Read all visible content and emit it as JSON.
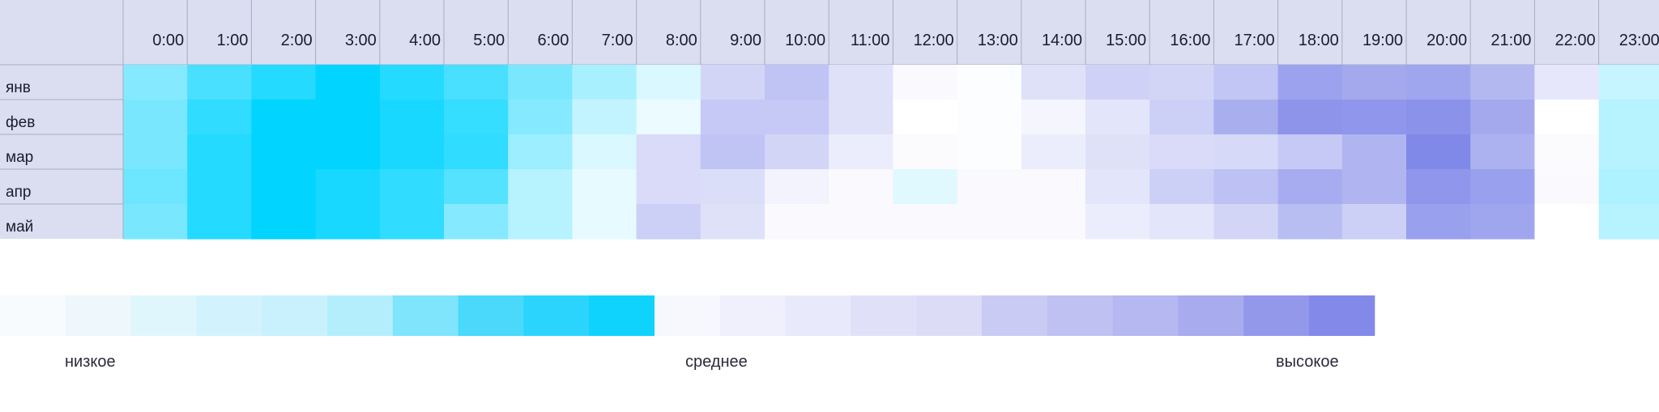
{
  "chart_data": {
    "type": "heatmap",
    "x": [
      "0:00",
      "1:00",
      "2:00",
      "3:00",
      "4:00",
      "5:00",
      "6:00",
      "7:00",
      "8:00",
      "9:00",
      "10:00",
      "11:00",
      "12:00",
      "13:00",
      "14:00",
      "15:00",
      "16:00",
      "17:00",
      "18:00",
      "19:00",
      "20:00",
      "21:00",
      "22:00",
      "23:00"
    ],
    "y": [
      "янв",
      "фев",
      "мар",
      "апр",
      "май"
    ],
    "level_scale": "0 = lowest (lightest) to 1 = highest (darkest) within each ramp",
    "cells": [
      [
        {
          "ramp": "cyan",
          "level": 0.45
        },
        {
          "ramp": "cyan",
          "level": 0.7
        },
        {
          "ramp": "cyan",
          "level": 0.85
        },
        {
          "ramp": "cyan",
          "level": 1.0
        },
        {
          "ramp": "cyan",
          "level": 0.85
        },
        {
          "ramp": "cyan",
          "level": 0.7
        },
        {
          "ramp": "cyan",
          "level": 0.5
        },
        {
          "ramp": "cyan",
          "level": 0.3
        },
        {
          "ramp": "cyan",
          "level": 0.1
        },
        {
          "ramp": "purple",
          "level": 0.35
        },
        {
          "ramp": "purple",
          "level": 0.5
        },
        {
          "ramp": "purple",
          "level": 0.25
        },
        {
          "ramp": "purple",
          "level": 0.05
        },
        {
          "ramp": "purple",
          "level": 0.02
        },
        {
          "ramp": "purple",
          "level": 0.25
        },
        {
          "ramp": "purple",
          "level": 0.38
        },
        {
          "ramp": "purple",
          "level": 0.35
        },
        {
          "ramp": "purple",
          "level": 0.48
        },
        {
          "ramp": "purple",
          "level": 0.78
        },
        {
          "ramp": "purple",
          "level": 0.72
        },
        {
          "ramp": "purple",
          "level": 0.75
        },
        {
          "ramp": "purple",
          "level": 0.6
        },
        {
          "ramp": "purple",
          "level": 0.2
        },
        {
          "ramp": "cyan",
          "level": 0.18
        }
      ],
      [
        {
          "ramp": "cyan",
          "level": 0.5
        },
        {
          "ramp": "cyan",
          "level": 0.8
        },
        {
          "ramp": "cyan",
          "level": 1.0
        },
        {
          "ramp": "cyan",
          "level": 1.0
        },
        {
          "ramp": "cyan",
          "level": 0.9
        },
        {
          "ramp": "cyan",
          "level": 0.78
        },
        {
          "ramp": "cyan",
          "level": 0.45
        },
        {
          "ramp": "cyan",
          "level": 0.2
        },
        {
          "ramp": "cyan",
          "level": 0.03
        },
        {
          "ramp": "purple",
          "level": 0.45
        },
        {
          "ramp": "purple",
          "level": 0.45
        },
        {
          "ramp": "purple",
          "level": 0.25
        },
        {
          "ramp": "purple",
          "level": 0.0
        },
        {
          "ramp": "purple",
          "level": 0.02
        },
        {
          "ramp": "purple",
          "level": 0.08
        },
        {
          "ramp": "purple",
          "level": 0.22
        },
        {
          "ramp": "purple",
          "level": 0.4
        },
        {
          "ramp": "purple",
          "level": 0.68
        },
        {
          "ramp": "purple",
          "level": 0.9
        },
        {
          "ramp": "purple",
          "level": 0.88
        },
        {
          "ramp": "purple",
          "level": 0.92
        },
        {
          "ramp": "purple",
          "level": 0.72
        },
        {
          "ramp": "purple",
          "level": 0.0
        },
        {
          "ramp": "cyan",
          "level": 0.25
        }
      ],
      [
        {
          "ramp": "cyan",
          "level": 0.5
        },
        {
          "ramp": "cyan",
          "level": 0.85
        },
        {
          "ramp": "cyan",
          "level": 1.0
        },
        {
          "ramp": "cyan",
          "level": 1.0
        },
        {
          "ramp": "cyan",
          "level": 0.9
        },
        {
          "ramp": "cyan",
          "level": 0.8
        },
        {
          "ramp": "cyan",
          "level": 0.35
        },
        {
          "ramp": "cyan",
          "level": 0.1
        },
        {
          "ramp": "purple",
          "level": 0.3
        },
        {
          "ramp": "purple",
          "level": 0.5
        },
        {
          "ramp": "purple",
          "level": 0.35
        },
        {
          "ramp": "purple",
          "level": 0.15
        },
        {
          "ramp": "purple",
          "level": 0.03
        },
        {
          "ramp": "purple",
          "level": 0.02
        },
        {
          "ramp": "purple",
          "level": 0.15
        },
        {
          "ramp": "purple",
          "level": 0.25
        },
        {
          "ramp": "purple",
          "level": 0.3
        },
        {
          "ramp": "purple",
          "level": 0.32
        },
        {
          "ramp": "purple",
          "level": 0.45
        },
        {
          "ramp": "purple",
          "level": 0.62
        },
        {
          "ramp": "purple",
          "level": 1.0
        },
        {
          "ramp": "purple",
          "level": 0.65
        },
        {
          "ramp": "purple",
          "level": 0.03
        },
        {
          "ramp": "cyan",
          "level": 0.25
        }
      ],
      [
        {
          "ramp": "cyan",
          "level": 0.55
        },
        {
          "ramp": "cyan",
          "level": 0.85
        },
        {
          "ramp": "cyan",
          "level": 1.0
        },
        {
          "ramp": "cyan",
          "level": 0.9
        },
        {
          "ramp": "cyan",
          "level": 0.8
        },
        {
          "ramp": "cyan",
          "level": 0.65
        },
        {
          "ramp": "cyan",
          "level": 0.25
        },
        {
          "ramp": "cyan",
          "level": 0.05
        },
        {
          "ramp": "purple",
          "level": 0.3
        },
        {
          "ramp": "purple",
          "level": 0.28
        },
        {
          "ramp": "purple",
          "level": 0.1
        },
        {
          "ramp": "purple",
          "level": 0.05
        },
        {
          "ramp": "cyan",
          "level": 0.08
        },
        {
          "ramp": "purple",
          "level": 0.05
        },
        {
          "ramp": "purple",
          "level": 0.05
        },
        {
          "ramp": "purple",
          "level": 0.22
        },
        {
          "ramp": "purple",
          "level": 0.4
        },
        {
          "ramp": "purple",
          "level": 0.52
        },
        {
          "ramp": "purple",
          "level": 0.7
        },
        {
          "ramp": "purple",
          "level": 0.62
        },
        {
          "ramp": "purple",
          "level": 0.88
        },
        {
          "ramp": "purple",
          "level": 0.8
        },
        {
          "ramp": "purple",
          "level": 0.05
        },
        {
          "ramp": "cyan",
          "level": 0.28
        }
      ],
      [
        {
          "ramp": "cyan",
          "level": 0.5
        },
        {
          "ramp": "cyan",
          "level": 0.85
        },
        {
          "ramp": "cyan",
          "level": 1.0
        },
        {
          "ramp": "cyan",
          "level": 0.9
        },
        {
          "ramp": "cyan",
          "level": 0.8
        },
        {
          "ramp": "cyan",
          "level": 0.45
        },
        {
          "ramp": "cyan",
          "level": 0.25
        },
        {
          "ramp": "cyan",
          "level": 0.05
        },
        {
          "ramp": "purple",
          "level": 0.4
        },
        {
          "ramp": "purple",
          "level": 0.25
        },
        {
          "ramp": "purple",
          "level": 0.05
        },
        {
          "ramp": "purple",
          "level": 0.05
        },
        {
          "ramp": "purple",
          "level": 0.05
        },
        {
          "ramp": "purple",
          "level": 0.05
        },
        {
          "ramp": "purple",
          "level": 0.05
        },
        {
          "ramp": "purple",
          "level": 0.15
        },
        {
          "ramp": "purple",
          "level": 0.22
        },
        {
          "ramp": "purple",
          "level": 0.35
        },
        {
          "ramp": "purple",
          "level": 0.55
        },
        {
          "ramp": "purple",
          "level": 0.4
        },
        {
          "ramp": "purple",
          "level": 0.8
        },
        {
          "ramp": "purple",
          "level": 0.75
        },
        {
          "ramp": "purple",
          "level": 0.0
        },
        {
          "ramp": "cyan",
          "level": 0.25
        }
      ]
    ],
    "legend": {
      "swatches": [
        "#f7fbfe",
        "#eef7fc",
        "#e0f6fd",
        "#d2f3fd",
        "#c9f1fd",
        "#b4eefd",
        "#7fe5fc",
        "#4ad8fb",
        "#2bd4fd",
        "#0fd2fd",
        "#f7f8fe",
        "#eff0fc",
        "#e8e9fa",
        "#e0e1f8",
        "#dcdcf7",
        "#cacbf4",
        "#bfc1f3",
        "#b6b8f1",
        "#a8abee",
        "#9498eb",
        "#8389e8"
      ],
      "labels": {
        "low": "низкое",
        "mid": "среднее",
        "high": "высокое"
      }
    }
  },
  "colors": {
    "header_bg": "#dadef0",
    "header_grid": "#a9acc0",
    "cyan_light": "#f2fcff",
    "cyan_dark": "#00d4ff",
    "purple_light": "#ffffff",
    "purple_dark": "#8088e8"
  }
}
